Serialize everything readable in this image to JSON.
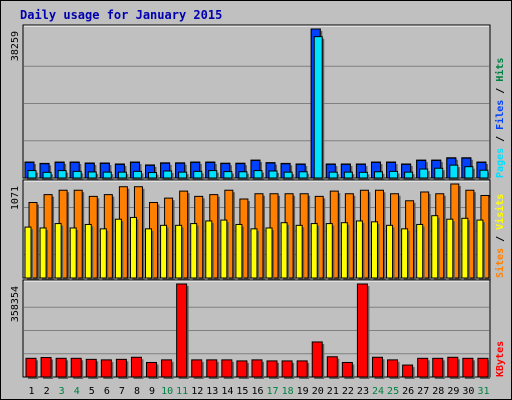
{
  "title": "Daily usage for January 2015",
  "colors": {
    "background": "#c0c0c0",
    "plot_background": "#c0c0c0",
    "hits": "#008040",
    "files": "#0040ff",
    "pages": "#00e0ff",
    "visits": "#ffff00",
    "sites": "#ff8000",
    "kbytes": "#ff0000",
    "title": "#0000b0",
    "weekend_day": "#008040",
    "weekday": "#000000"
  },
  "chart_data": [
    {
      "type": "bar",
      "panel": "hits-files-pages",
      "categories": [
        "1",
        "2",
        "3",
        "4",
        "5",
        "6",
        "7",
        "8",
        "9",
        "10",
        "11",
        "12",
        "13",
        "14",
        "15",
        "16",
        "17",
        "18",
        "19",
        "20",
        "21",
        "22",
        "23",
        "24",
        "25",
        "26",
        "27",
        "28",
        "29",
        "30",
        "31"
      ],
      "max_label": "38259",
      "ylim": [
        0,
        38259
      ],
      "axis_label_parts": [
        {
          "text": "Pages",
          "color": "#00e0ff"
        },
        {
          "text": " / ",
          "color": "#000000"
        },
        {
          "text": "Files",
          "color": "#0040ff"
        },
        {
          "text": " / ",
          "color": "#000000"
        },
        {
          "text": "Hits",
          "color": "#008040"
        }
      ],
      "series": [
        {
          "name": "Hits",
          "color": "#008040",
          "values": [
            4100,
            3750,
            4100,
            4100,
            3850,
            3850,
            3600,
            4100,
            3350,
            3900,
            3900,
            4100,
            4100,
            3800,
            3800,
            4600,
            3950,
            3750,
            3600,
            38259,
            3600,
            3600,
            3600,
            4100,
            4100,
            3600,
            4600,
            4600,
            5200,
            5200,
            4100
          ]
        },
        {
          "name": "Files",
          "color": "#0040ff",
          "values": [
            4000,
            3650,
            4000,
            4000,
            3750,
            3750,
            3500,
            4000,
            3250,
            3800,
            3800,
            4000,
            4000,
            3700,
            3700,
            4500,
            3850,
            3650,
            3500,
            38259,
            3500,
            3500,
            3500,
            4000,
            4000,
            3500,
            4500,
            4500,
            5100,
            5100,
            4000
          ]
        },
        {
          "name": "Pages",
          "color": "#00e0ff",
          "values": [
            1900,
            1450,
            1900,
            1700,
            1550,
            1500,
            1500,
            1700,
            1400,
            1800,
            1500,
            1700,
            1900,
            1650,
            1600,
            1900,
            1800,
            1500,
            1600,
            36300,
            1500,
            1500,
            1450,
            1600,
            1700,
            1500,
            2300,
            2500,
            3300,
            2900,
            2000
          ]
        }
      ]
    },
    {
      "type": "bar",
      "panel": "sites-visits",
      "categories": [
        "1",
        "2",
        "3",
        "4",
        "5",
        "6",
        "7",
        "8",
        "9",
        "10",
        "11",
        "12",
        "13",
        "14",
        "15",
        "16",
        "17",
        "18",
        "19",
        "20",
        "21",
        "22",
        "23",
        "24",
        "25",
        "26",
        "27",
        "28",
        "29",
        "30",
        "31"
      ],
      "max_label": "1071",
      "ylim": [
        0,
        1071
      ],
      "axis_label_parts": [
        {
          "text": "Sites",
          "color": "#ff8000"
        },
        {
          "text": " / ",
          "color": "#000000"
        },
        {
          "text": "Visits",
          "color": "#ffff00"
        }
      ],
      "series": [
        {
          "name": "Sites",
          "color": "#ff8000",
          "values": [
            860,
            950,
            1000,
            1000,
            930,
            950,
            1040,
            1040,
            860,
            910,
            990,
            930,
            950,
            1000,
            900,
            960,
            960,
            960,
            960,
            930,
            990,
            960,
            1000,
            1000,
            960,
            880,
            980,
            960,
            1071,
            1000,
            940
          ]
        },
        {
          "name": "Visits",
          "color": "#ffff00",
          "values": [
            580,
            570,
            620,
            570,
            610,
            560,
            670,
            690,
            560,
            600,
            600,
            620,
            650,
            660,
            610,
            560,
            570,
            630,
            600,
            620,
            620,
            630,
            650,
            640,
            600,
            560,
            610,
            710,
            670,
            680,
            660
          ]
        }
      ]
    },
    {
      "type": "bar",
      "panel": "kbytes",
      "categories": [
        "1",
        "2",
        "3",
        "4",
        "5",
        "6",
        "7",
        "8",
        "9",
        "10",
        "11",
        "12",
        "13",
        "14",
        "15",
        "16",
        "17",
        "18",
        "19",
        "20",
        "21",
        "22",
        "23",
        "24",
        "25",
        "26",
        "27",
        "28",
        "29",
        "30",
        "31"
      ],
      "max_label": "358354",
      "ylim": [
        0,
        358354
      ],
      "axis_label_parts": [
        {
          "text": "KBytes",
          "color": "#ff0000"
        }
      ],
      "series": [
        {
          "name": "KBytes",
          "color": "#ff0000",
          "values": [
            72000,
            75000,
            72000,
            72000,
            68000,
            66000,
            68000,
            76000,
            56000,
            66000,
            358354,
            66000,
            66000,
            66000,
            62000,
            66000,
            62000,
            62000,
            62000,
            135000,
            78000,
            56000,
            358354,
            76000,
            66000,
            46000,
            72000,
            72000,
            76000,
            72000,
            72000
          ]
        }
      ]
    }
  ],
  "weekend_days": [
    3,
    4,
    10,
    11,
    17,
    18,
    24,
    25,
    31
  ]
}
